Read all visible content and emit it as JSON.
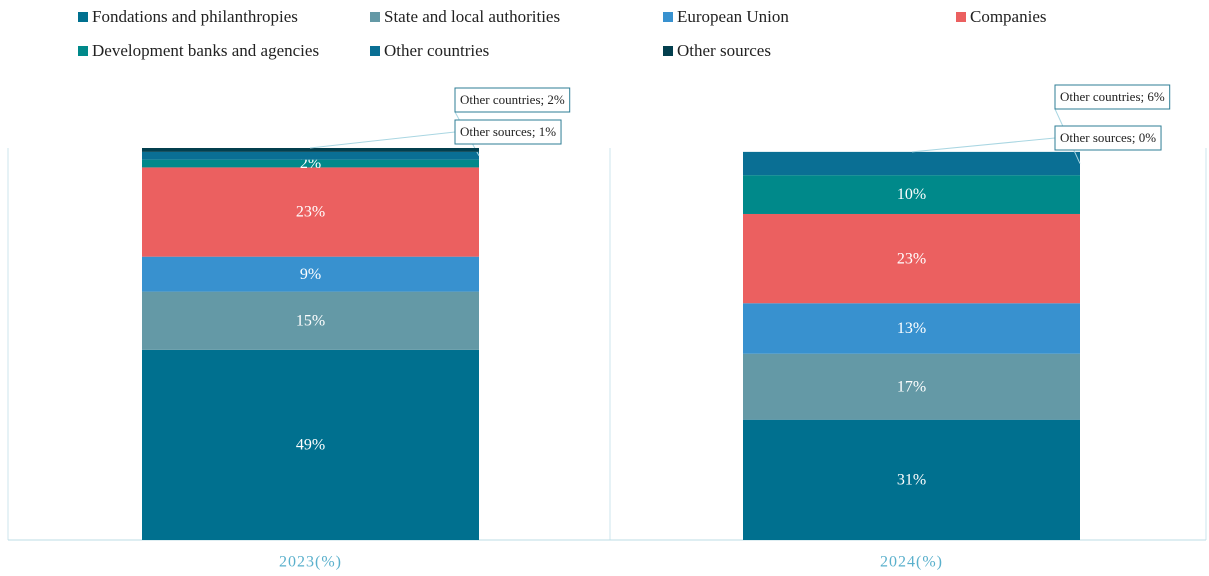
{
  "chart_data": {
    "type": "stacked_bar",
    "categories": [
      "2023(%)",
      "2024(%)"
    ],
    "series": [
      {
        "name": "Fondations and philanthropies",
        "color": "#00708f",
        "values": [
          49,
          31
        ],
        "value_labels": [
          "49%",
          "31%"
        ]
      },
      {
        "name": "State and local authorities",
        "color": "#6499a6",
        "values": [
          15,
          17
        ],
        "value_labels": [
          "15%",
          "17%"
        ]
      },
      {
        "name": "European Union",
        "color": "#3891cf",
        "values": [
          9,
          13
        ],
        "value_labels": [
          "9%",
          "13%"
        ]
      },
      {
        "name": "Companies",
        "color": "#eb6060",
        "values": [
          23,
          23
        ],
        "value_labels": [
          "23%",
          "23%"
        ]
      },
      {
        "name": "Development banks and agencies",
        "color": "#00898a",
        "values": [
          2,
          10
        ],
        "value_labels": [
          "2%",
          "10%"
        ]
      },
      {
        "name": "Other countries",
        "color": "#0a6f94",
        "values": [
          2,
          6
        ],
        "value_labels": [
          "Other countries; 2%",
          "Other countries; 6%"
        ]
      },
      {
        "name": "Other sources",
        "color": "#033f4e",
        "values": [
          1,
          0
        ],
        "value_labels": [
          "Other sources; 1%",
          "Other sources; 0%"
        ]
      }
    ]
  }
}
